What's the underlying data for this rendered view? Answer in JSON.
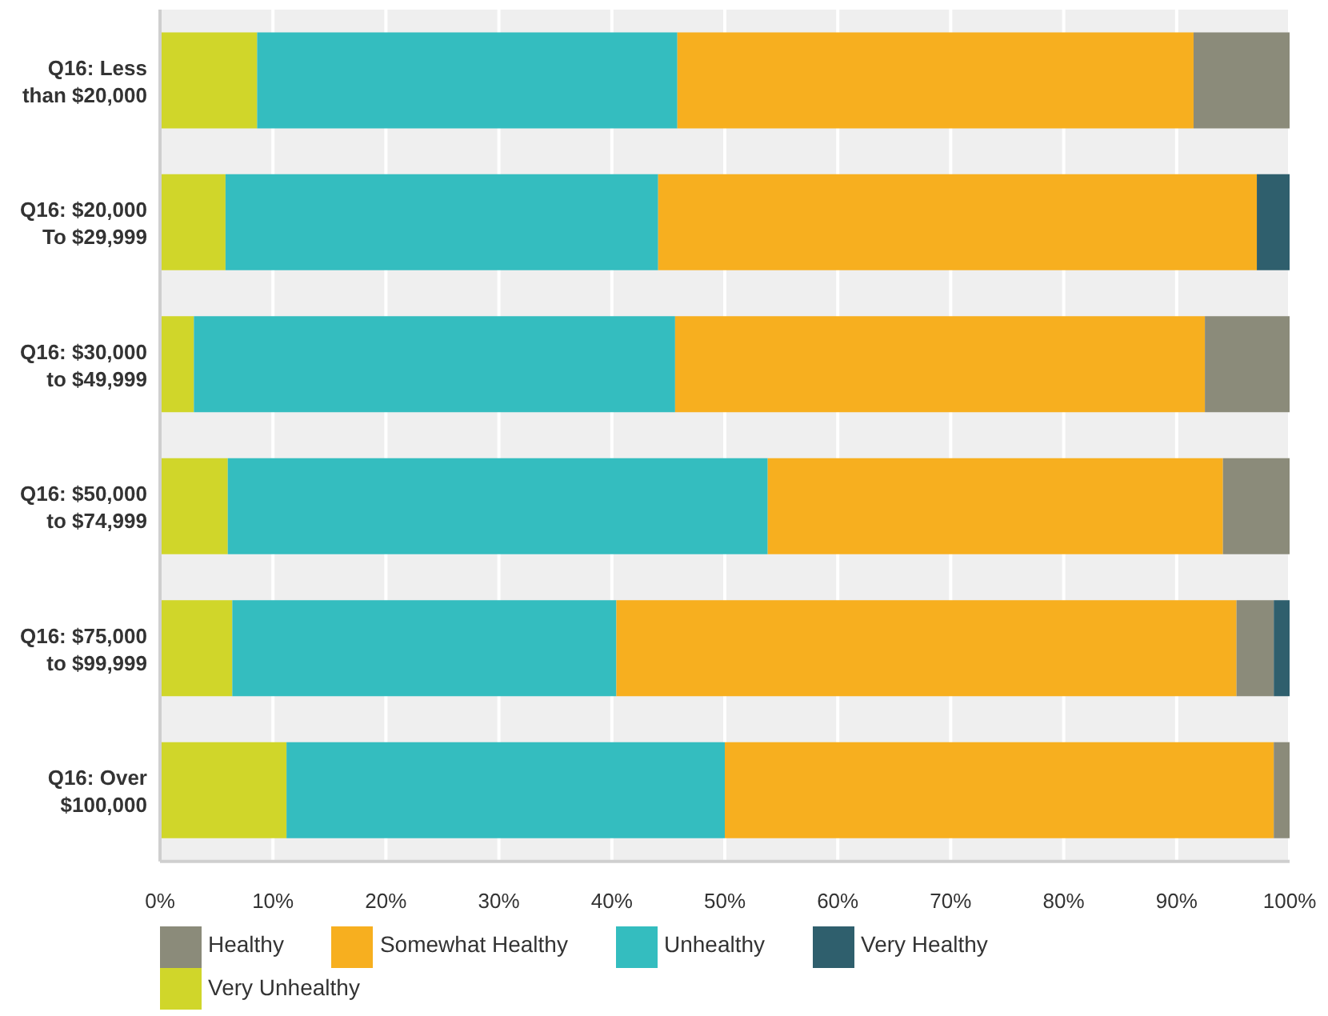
{
  "chart_data": {
    "type": "bar",
    "orientation": "horizontal",
    "stacked": true,
    "categories": [
      "Q16: Less than $20,000",
      "Q16: $20,000 To $29,999",
      "Q16: $30,000 to $49,999",
      "Q16: $50,000 to $74,999",
      "Q16: $75,000 to $99,999",
      "Q16: Over $100,000"
    ],
    "series": [
      {
        "name": "Very Unhealthy",
        "color": "#d0d62a",
        "values": [
          8.6,
          5.8,
          3.0,
          6.0,
          6.4,
          11.2
        ]
      },
      {
        "name": "Unhealthy",
        "color": "#34bdbf",
        "values": [
          37.2,
          38.3,
          42.6,
          47.8,
          34.0,
          38.8
        ]
      },
      {
        "name": "Somewhat Healthy",
        "color": "#f7af1f",
        "values": [
          45.7,
          53.0,
          46.9,
          40.3,
          54.9,
          48.6
        ]
      },
      {
        "name": "Healthy",
        "color": "#8b8b7a",
        "values": [
          8.5,
          0,
          7.5,
          5.9,
          3.3,
          1.4
        ]
      },
      {
        "name": "Very Healthy",
        "color": "#2f5f6d",
        "values": [
          0,
          2.9,
          0,
          0,
          1.4,
          0
        ]
      }
    ],
    "xlim": [
      0,
      100
    ],
    "xticks": [
      {
        "value": 0,
        "label": "0%"
      },
      {
        "value": 10,
        "label": "10%"
      },
      {
        "value": 20,
        "label": "20%"
      },
      {
        "value": 30,
        "label": "30%"
      },
      {
        "value": 40,
        "label": "40%"
      },
      {
        "value": 50,
        "label": "50%"
      },
      {
        "value": 60,
        "label": "60%"
      },
      {
        "value": 70,
        "label": "70%"
      },
      {
        "value": 80,
        "label": "80%"
      },
      {
        "value": 90,
        "label": "90%"
      },
      {
        "value": 100,
        "label": "100%"
      }
    ],
    "grid": "x",
    "legend": "bottom left"
  }
}
